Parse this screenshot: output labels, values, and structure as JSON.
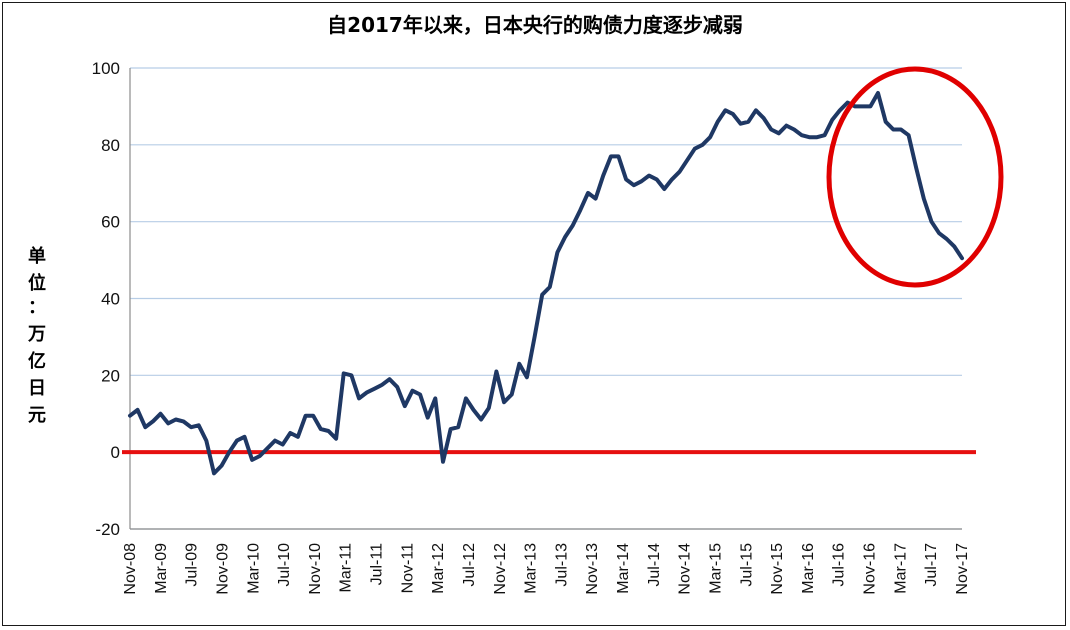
{
  "chart_data": {
    "type": "line",
    "title": "自2017年以来，日本央行的购债力度逐步减弱",
    "ylabel": "单位：万亿日元",
    "ylim": [
      -20,
      100
    ],
    "yticks": [
      100,
      80,
      60,
      40,
      20,
      0,
      -20
    ],
    "grid": true,
    "x_tick_labels": [
      "Nov-08",
      "Mar-09",
      "Jul-09",
      "Nov-09",
      "Mar-10",
      "Jul-10",
      "Nov-10",
      "Mar-11",
      "Jul-11",
      "Nov-11",
      "Mar-12",
      "Jul-12",
      "Nov-12",
      "Mar-13",
      "Jul-13",
      "Nov-13",
      "Mar-14",
      "Jul-14",
      "Nov-14",
      "Mar-15",
      "Jul-15",
      "Nov-15",
      "Mar-16",
      "Jul-16",
      "Nov-16",
      "Mar-17",
      "Jul-17",
      "Nov-17"
    ],
    "x_start": "Nov-08",
    "x_end": "Nov-17",
    "series": [
      {
        "color": "#1f3864",
        "values": [
          9.5,
          11,
          6.5,
          8,
          10,
          7.5,
          8.5,
          8,
          6.5,
          7,
          3,
          -5.5,
          -3.5,
          0,
          3,
          4,
          -2,
          -1,
          1,
          3,
          2,
          5,
          4,
          9.5,
          9.5,
          6,
          5.5,
          3.5,
          20.5,
          20,
          14,
          15.5,
          16.5,
          17.5,
          19,
          17,
          12,
          16,
          15,
          9,
          14,
          -2.5,
          6,
          6.5,
          14,
          11,
          8.5,
          11.5,
          21,
          13,
          15,
          23,
          19.5,
          30,
          41,
          43,
          52,
          56,
          59,
          63,
          67.5,
          66,
          72,
          77,
          77,
          71,
          69.5,
          70.5,
          72,
          71,
          68.5,
          71,
          73,
          76,
          79,
          80,
          82,
          86,
          89,
          88,
          85.5,
          86,
          89,
          87,
          84,
          83,
          85,
          84,
          82.5,
          82,
          82,
          82.5,
          86.5,
          89,
          91,
          90,
          90,
          90,
          93.5,
          86,
          84,
          84,
          82.5,
          74,
          66,
          60,
          57,
          55.5,
          53.5,
          50.5
        ]
      }
    ],
    "reference_line": {
      "value": 0,
      "color": "#e61010"
    },
    "annotation": {
      "shape": "ellipse",
      "color": "#e00000",
      "around": "Nov-16 to Nov-17"
    }
  }
}
